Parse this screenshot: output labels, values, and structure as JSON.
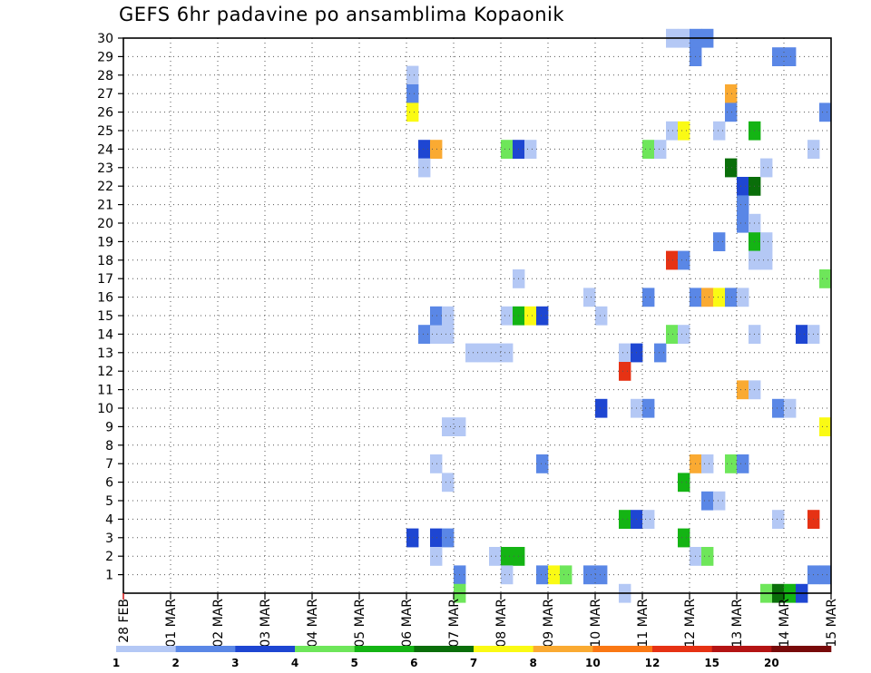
{
  "chart_data": {
    "type": "heatmap",
    "title": "GEFS 6hr padavine po ansamblima Kopaonik",
    "xlabel": "",
    "ylabel": "",
    "y_ticks": [
      1,
      2,
      3,
      4,
      5,
      6,
      7,
      8,
      9,
      10,
      11,
      12,
      13,
      14,
      15,
      16,
      17,
      18,
      19,
      20,
      21,
      22,
      23,
      24,
      25,
      26,
      27,
      28,
      29,
      30
    ],
    "ylim": [
      0,
      30
    ],
    "x_ticks": [
      "28 FEB",
      "01 MAR",
      "02 MAR",
      "03 MAR",
      "04 MAR",
      "05 MAR",
      "06 MAR",
      "07 MAR",
      "08 MAR",
      "09 MAR",
      "10 MAR",
      "11 MAR",
      "12 MAR",
      "13 MAR",
      "14 MAR",
      "15 MAR"
    ],
    "xlim": [
      0,
      60
    ],
    "x_units": "6-hour steps from 28 FEB",
    "grid": true,
    "colorbar": {
      "position": "bottom",
      "levels": [
        "1",
        "2",
        "3",
        "4",
        "5",
        "6",
        "7",
        "8",
        "10",
        "12",
        "15",
        "20"
      ],
      "colors": [
        "#b4c8f5",
        "#5a87e6",
        "#1e46d2",
        "#6ee65a",
        "#14b414",
        "#0a6e0a",
        "#fafa14",
        "#faaa32",
        "#fa7814",
        "#e63214",
        "#b41414",
        "#780a0a"
      ]
    },
    "cells": [
      {
        "x": 24,
        "y": 28,
        "c": 0
      },
      {
        "x": 24,
        "y": 27,
        "c": 1
      },
      {
        "x": 24,
        "y": 26,
        "c": 6
      },
      {
        "x": 25,
        "y": 24,
        "c": 2
      },
      {
        "x": 26,
        "y": 24,
        "c": 7
      },
      {
        "x": 25,
        "y": 23,
        "c": 0
      },
      {
        "x": 24,
        "y": 3,
        "c": 2
      },
      {
        "x": 26,
        "y": 3,
        "c": 2
      },
      {
        "x": 27,
        "y": 3,
        "c": 1
      },
      {
        "x": 26,
        "y": 2,
        "c": 0
      },
      {
        "x": 26,
        "y": 7,
        "c": 0
      },
      {
        "x": 27,
        "y": 6,
        "c": 0
      },
      {
        "x": 27,
        "y": 9,
        "c": 0
      },
      {
        "x": 28,
        "y": 9,
        "c": 0
      },
      {
        "x": 25,
        "y": 14,
        "c": 1
      },
      {
        "x": 26,
        "y": 14,
        "c": 0
      },
      {
        "x": 27,
        "y": 14,
        "c": 0
      },
      {
        "x": 26,
        "y": 15,
        "c": 1
      },
      {
        "x": 27,
        "y": 15,
        "c": 0
      },
      {
        "x": 29,
        "y": 13,
        "c": 0
      },
      {
        "x": 30,
        "y": 13,
        "c": 0
      },
      {
        "x": 31,
        "y": 13,
        "c": 0
      },
      {
        "x": 32,
        "y": 13,
        "c": 0
      },
      {
        "x": 28,
        "y": 1,
        "c": 1
      },
      {
        "x": 28,
        "y": 0,
        "c": 3
      },
      {
        "x": 31,
        "y": 2,
        "c": 0
      },
      {
        "x": 32,
        "y": 2,
        "c": 4
      },
      {
        "x": 33,
        "y": 2,
        "c": 4
      },
      {
        "x": 32,
        "y": 1,
        "c": 0
      },
      {
        "x": 32,
        "y": 24,
        "c": 3
      },
      {
        "x": 33,
        "y": 24,
        "c": 2
      },
      {
        "x": 34,
        "y": 24,
        "c": 0
      },
      {
        "x": 33,
        "y": 17,
        "c": 0
      },
      {
        "x": 32,
        "y": 15,
        "c": 0
      },
      {
        "x": 33,
        "y": 15,
        "c": 4
      },
      {
        "x": 34,
        "y": 15,
        "c": 6
      },
      {
        "x": 35,
        "y": 15,
        "c": 2
      },
      {
        "x": 35,
        "y": 7,
        "c": 1
      },
      {
        "x": 35,
        "y": 1,
        "c": 1
      },
      {
        "x": 36,
        "y": 1,
        "c": 6
      },
      {
        "x": 37,
        "y": 1,
        "c": 3
      },
      {
        "x": 39,
        "y": 16,
        "c": 0
      },
      {
        "x": 40,
        "y": 15,
        "c": 0
      },
      {
        "x": 40,
        "y": 10,
        "c": 2
      },
      {
        "x": 39,
        "y": 1,
        "c": 1
      },
      {
        "x": 40,
        "y": 1,
        "c": 1
      },
      {
        "x": 42,
        "y": 13,
        "c": 0
      },
      {
        "x": 43,
        "y": 13,
        "c": 2
      },
      {
        "x": 42,
        "y": 12,
        "c": 9
      },
      {
        "x": 44,
        "y": 16,
        "c": 1
      },
      {
        "x": 45,
        "y": 13,
        "c": 1
      },
      {
        "x": 44,
        "y": 24,
        "c": 3
      },
      {
        "x": 45,
        "y": 24,
        "c": 0
      },
      {
        "x": 43,
        "y": 10,
        "c": 0
      },
      {
        "x": 44,
        "y": 10,
        "c": 1
      },
      {
        "x": 42,
        "y": 4,
        "c": 4
      },
      {
        "x": 43,
        "y": 4,
        "c": 2
      },
      {
        "x": 44,
        "y": 4,
        "c": 0
      },
      {
        "x": 42,
        "y": 0,
        "c": 0
      },
      {
        "x": 46,
        "y": 30,
        "c": 0
      },
      {
        "x": 47,
        "y": 30,
        "c": 0
      },
      {
        "x": 48,
        "y": 30,
        "c": 1
      },
      {
        "x": 49,
        "y": 30,
        "c": 1
      },
      {
        "x": 48,
        "y": 29,
        "c": 1
      },
      {
        "x": 46,
        "y": 25,
        "c": 0
      },
      {
        "x": 47,
        "y": 25,
        "c": 6
      },
      {
        "x": 46,
        "y": 18,
        "c": 9
      },
      {
        "x": 47,
        "y": 18,
        "c": 1
      },
      {
        "x": 46,
        "y": 14,
        "c": 3
      },
      {
        "x": 47,
        "y": 14,
        "c": 0
      },
      {
        "x": 48,
        "y": 16,
        "c": 1
      },
      {
        "x": 49,
        "y": 16,
        "c": 7
      },
      {
        "x": 50,
        "y": 16,
        "c": 6
      },
      {
        "x": 51,
        "y": 16,
        "c": 1
      },
      {
        "x": 52,
        "y": 16,
        "c": 0
      },
      {
        "x": 48,
        "y": 7,
        "c": 7
      },
      {
        "x": 49,
        "y": 7,
        "c": 0
      },
      {
        "x": 47,
        "y": 6,
        "c": 4
      },
      {
        "x": 49,
        "y": 5,
        "c": 1
      },
      {
        "x": 50,
        "y": 5,
        "c": 0
      },
      {
        "x": 47,
        "y": 3,
        "c": 4
      },
      {
        "x": 48,
        "y": 2,
        "c": 0
      },
      {
        "x": 49,
        "y": 2,
        "c": 3
      },
      {
        "x": 50,
        "y": 25,
        "c": 0
      },
      {
        "x": 51,
        "y": 27,
        "c": 7
      },
      {
        "x": 51,
        "y": 26,
        "c": 1
      },
      {
        "x": 51,
        "y": 23,
        "c": 5
      },
      {
        "x": 52,
        "y": 22,
        "c": 2
      },
      {
        "x": 53,
        "y": 22,
        "c": 5
      },
      {
        "x": 52,
        "y": 21,
        "c": 1
      },
      {
        "x": 52,
        "y": 20,
        "c": 1
      },
      {
        "x": 53,
        "y": 20,
        "c": 0
      },
      {
        "x": 50,
        "y": 19,
        "c": 1
      },
      {
        "x": 53,
        "y": 19,
        "c": 4
      },
      {
        "x": 54,
        "y": 19,
        "c": 0
      },
      {
        "x": 53,
        "y": 18,
        "c": 0
      },
      {
        "x": 54,
        "y": 18,
        "c": 0
      },
      {
        "x": 53,
        "y": 25,
        "c": 4
      },
      {
        "x": 54,
        "y": 23,
        "c": 0
      },
      {
        "x": 52,
        "y": 11,
        "c": 7
      },
      {
        "x": 53,
        "y": 11,
        "c": 0
      },
      {
        "x": 51,
        "y": 7,
        "c": 3
      },
      {
        "x": 52,
        "y": 7,
        "c": 1
      },
      {
        "x": 53,
        "y": 14,
        "c": 0
      },
      {
        "x": 55,
        "y": 29,
        "c": 1
      },
      {
        "x": 56,
        "y": 29,
        "c": 1
      },
      {
        "x": 55,
        "y": 10,
        "c": 1
      },
      {
        "x": 56,
        "y": 10,
        "c": 0
      },
      {
        "x": 55,
        "y": 4,
        "c": 0
      },
      {
        "x": 58,
        "y": 4,
        "c": 9
      },
      {
        "x": 57,
        "y": 14,
        "c": 2
      },
      {
        "x": 58,
        "y": 14,
        "c": 0
      },
      {
        "x": 58,
        "y": 24,
        "c": 0
      },
      {
        "x": 59,
        "y": 26,
        "c": 1
      },
      {
        "x": 59,
        "y": 17,
        "c": 3
      },
      {
        "x": 59,
        "y": 9,
        "c": 6
      },
      {
        "x": 58,
        "y": 1,
        "c": 1
      },
      {
        "x": 59,
        "y": 1,
        "c": 1
      },
      {
        "x": 54,
        "y": 0,
        "c": 3
      },
      {
        "x": 55,
        "y": 0,
        "c": 5
      },
      {
        "x": 56,
        "y": 0,
        "c": 4
      },
      {
        "x": 57,
        "y": 0,
        "c": 2
      }
    ]
  }
}
